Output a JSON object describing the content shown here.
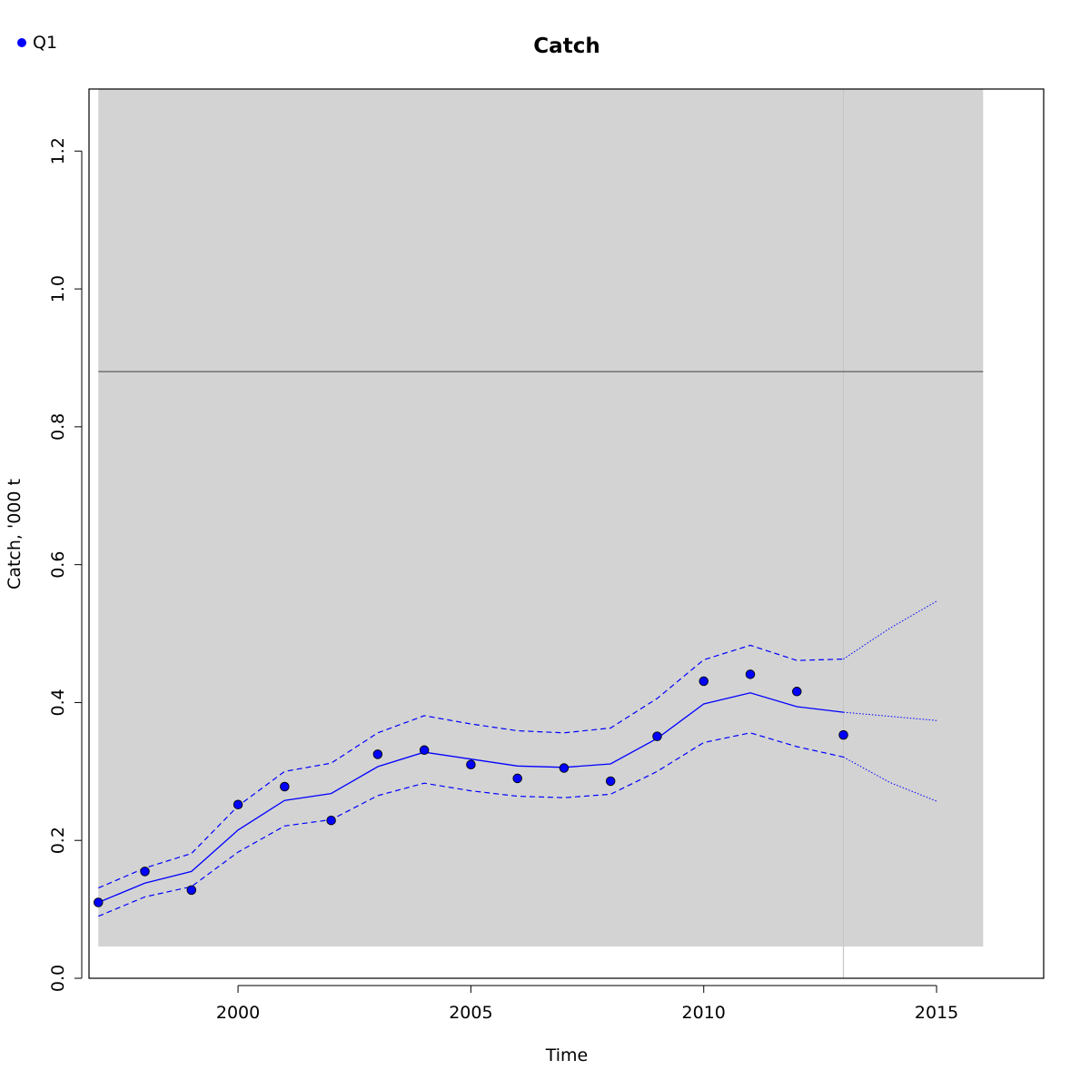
{
  "chart_data": {
    "type": "line",
    "title": "Catch",
    "xlabel": "Time",
    "ylabel": "Catch, '000 t",
    "xlim": [
      1996.8,
      2017.3
    ],
    "ylim": [
      0.0,
      1.29
    ],
    "xticks": [
      2000,
      2005,
      2010,
      2015
    ],
    "yticks": [
      0.0,
      0.2,
      0.4,
      0.6,
      0.8,
      1.0,
      1.2
    ],
    "grid": false,
    "legend": {
      "position": "top-left",
      "entries": [
        "Q1"
      ]
    },
    "colors": {
      "series": "#0000ff",
      "band": "#d3d3d3",
      "reference": "#7f7f7f",
      "divider": "#c6c6c6"
    },
    "shaded_band": {
      "x": [
        1997,
        2016
      ],
      "y": [
        0.046,
        1.29
      ]
    },
    "reference_line_y": 0.88,
    "projection_start_x": 2013,
    "observed": {
      "name": "Q1",
      "x": [
        1997,
        1998,
        1999,
        2000,
        2001,
        2002,
        2003,
        2004,
        2005,
        2006,
        2007,
        2008,
        2009,
        2010,
        2011,
        2012,
        2013
      ],
      "y": [
        0.11,
        0.155,
        0.128,
        0.252,
        0.278,
        0.229,
        0.325,
        0.331,
        0.31,
        0.29,
        0.305,
        0.286,
        0.351,
        0.431,
        0.441,
        0.416,
        0.353
      ]
    },
    "fit": {
      "x": [
        1997,
        1998,
        1999,
        2000,
        2001,
        2002,
        2003,
        2004,
        2005,
        2006,
        2007,
        2008,
        2009,
        2010,
        2011,
        2012,
        2013
      ],
      "median": [
        0.11,
        0.138,
        0.155,
        0.215,
        0.258,
        0.268,
        0.307,
        0.328,
        0.318,
        0.308,
        0.306,
        0.311,
        0.348,
        0.398,
        0.414,
        0.394,
        0.386
      ],
      "upper": [
        0.131,
        0.16,
        0.181,
        0.25,
        0.3,
        0.312,
        0.356,
        0.381,
        0.369,
        0.359,
        0.356,
        0.363,
        0.406,
        0.462,
        0.483,
        0.461,
        0.463
      ],
      "lower": [
        0.09,
        0.118,
        0.133,
        0.183,
        0.221,
        0.23,
        0.265,
        0.283,
        0.272,
        0.264,
        0.262,
        0.267,
        0.3,
        0.342,
        0.356,
        0.336,
        0.321
      ]
    },
    "projection": {
      "x": [
        2013,
        2014,
        2015
      ],
      "median": [
        0.386,
        0.38,
        0.374
      ],
      "upper": [
        0.463,
        0.508,
        0.547
      ],
      "lower": [
        0.321,
        0.284,
        0.257
      ]
    }
  }
}
